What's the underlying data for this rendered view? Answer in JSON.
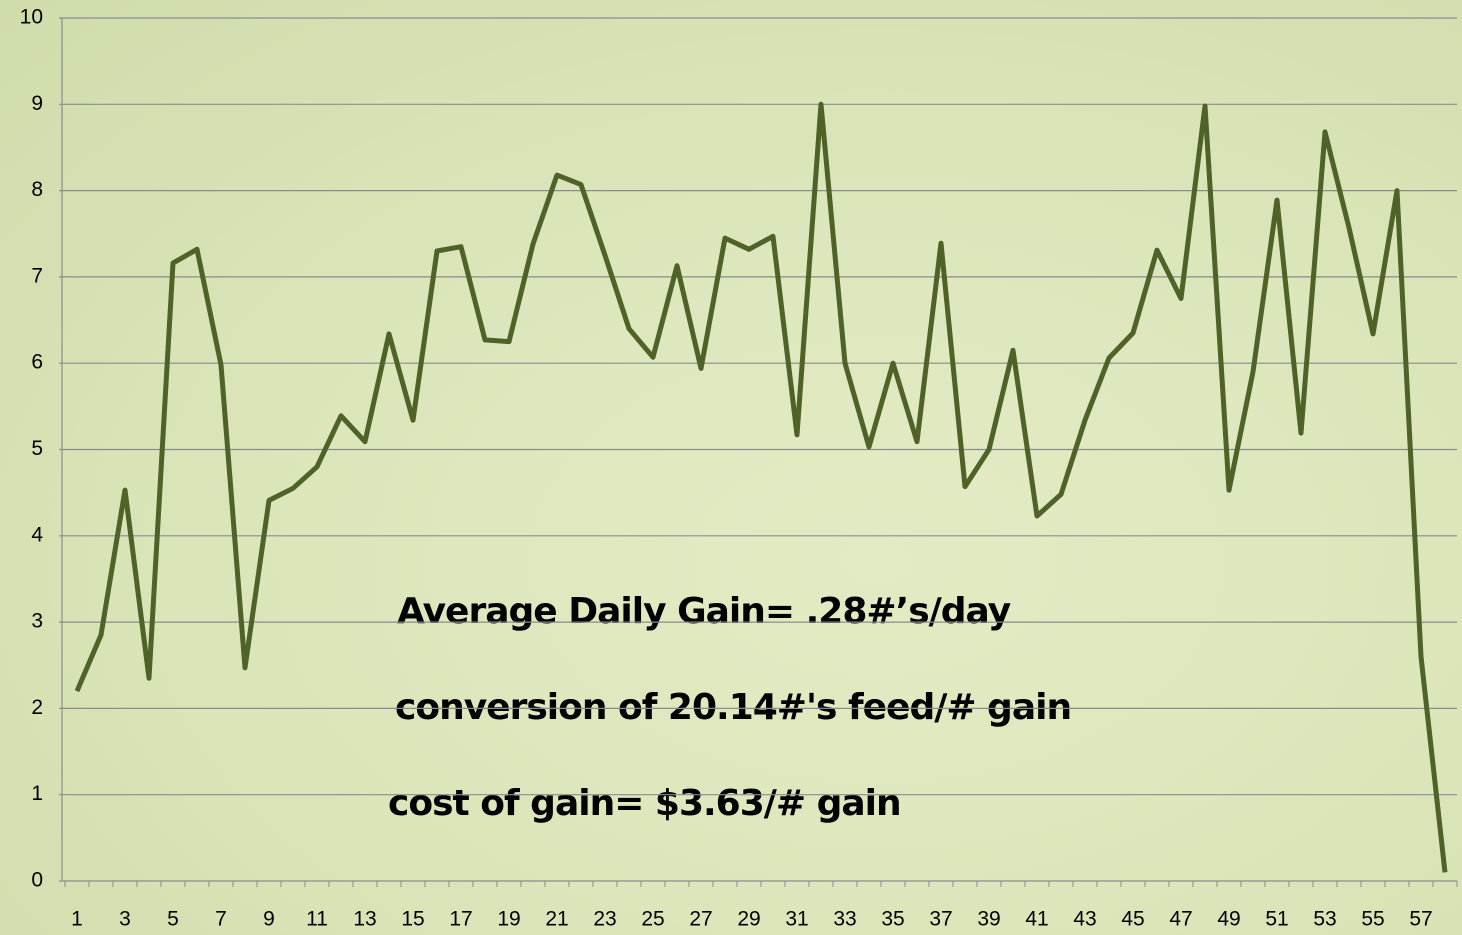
{
  "chart_data": {
    "type": "line",
    "categories": [
      "1",
      null,
      "3",
      null,
      "5",
      null,
      "7",
      null,
      "9",
      null,
      "11",
      null,
      "13",
      null,
      "15",
      null,
      "17",
      null,
      "19",
      null,
      "21",
      null,
      "23",
      null,
      "25",
      null,
      "27",
      null,
      "29",
      null,
      "31",
      null,
      "33",
      null,
      "35",
      null,
      "37",
      null,
      "39",
      null,
      "41",
      null,
      "43",
      null,
      "45",
      null,
      "47",
      null,
      "49",
      null,
      "51",
      null,
      "53",
      null,
      "55",
      null,
      "57",
      null
    ],
    "values": [
      2.2,
      2.85,
      4.53,
      2.35,
      7.16,
      7.32,
      5.98,
      2.47,
      4.41,
      4.55,
      4.8,
      5.39,
      5.09,
      6.34,
      5.34,
      7.3,
      7.35,
      6.27,
      6.25,
      7.38,
      8.18,
      8.07,
      7.25,
      6.4,
      6.07,
      7.13,
      5.94,
      7.45,
      7.32,
      7.47,
      5.17,
      9.0,
      6.0,
      5.03,
      6.0,
      5.09,
      7.39,
      4.57,
      5.0,
      6.15,
      4.23,
      4.48,
      5.34,
      6.06,
      6.35,
      7.31,
      6.75,
      8.98,
      4.53,
      5.9,
      7.89,
      5.19,
      8.68,
      7.57,
      6.34,
      8.0,
      2.6,
      0.1
    ],
    "color": "#4f6228",
    "ylim": [
      0,
      10
    ],
    "yticks": [
      0,
      1,
      2,
      3,
      4,
      5,
      6,
      7,
      8,
      9,
      10
    ],
    "grid": true,
    "annotations": [
      "Average Daily Gain= .28#’s/day",
      "conversion of 20.14#'s feed/# gain",
      "cost of gain= $3.63/# gain"
    ]
  }
}
